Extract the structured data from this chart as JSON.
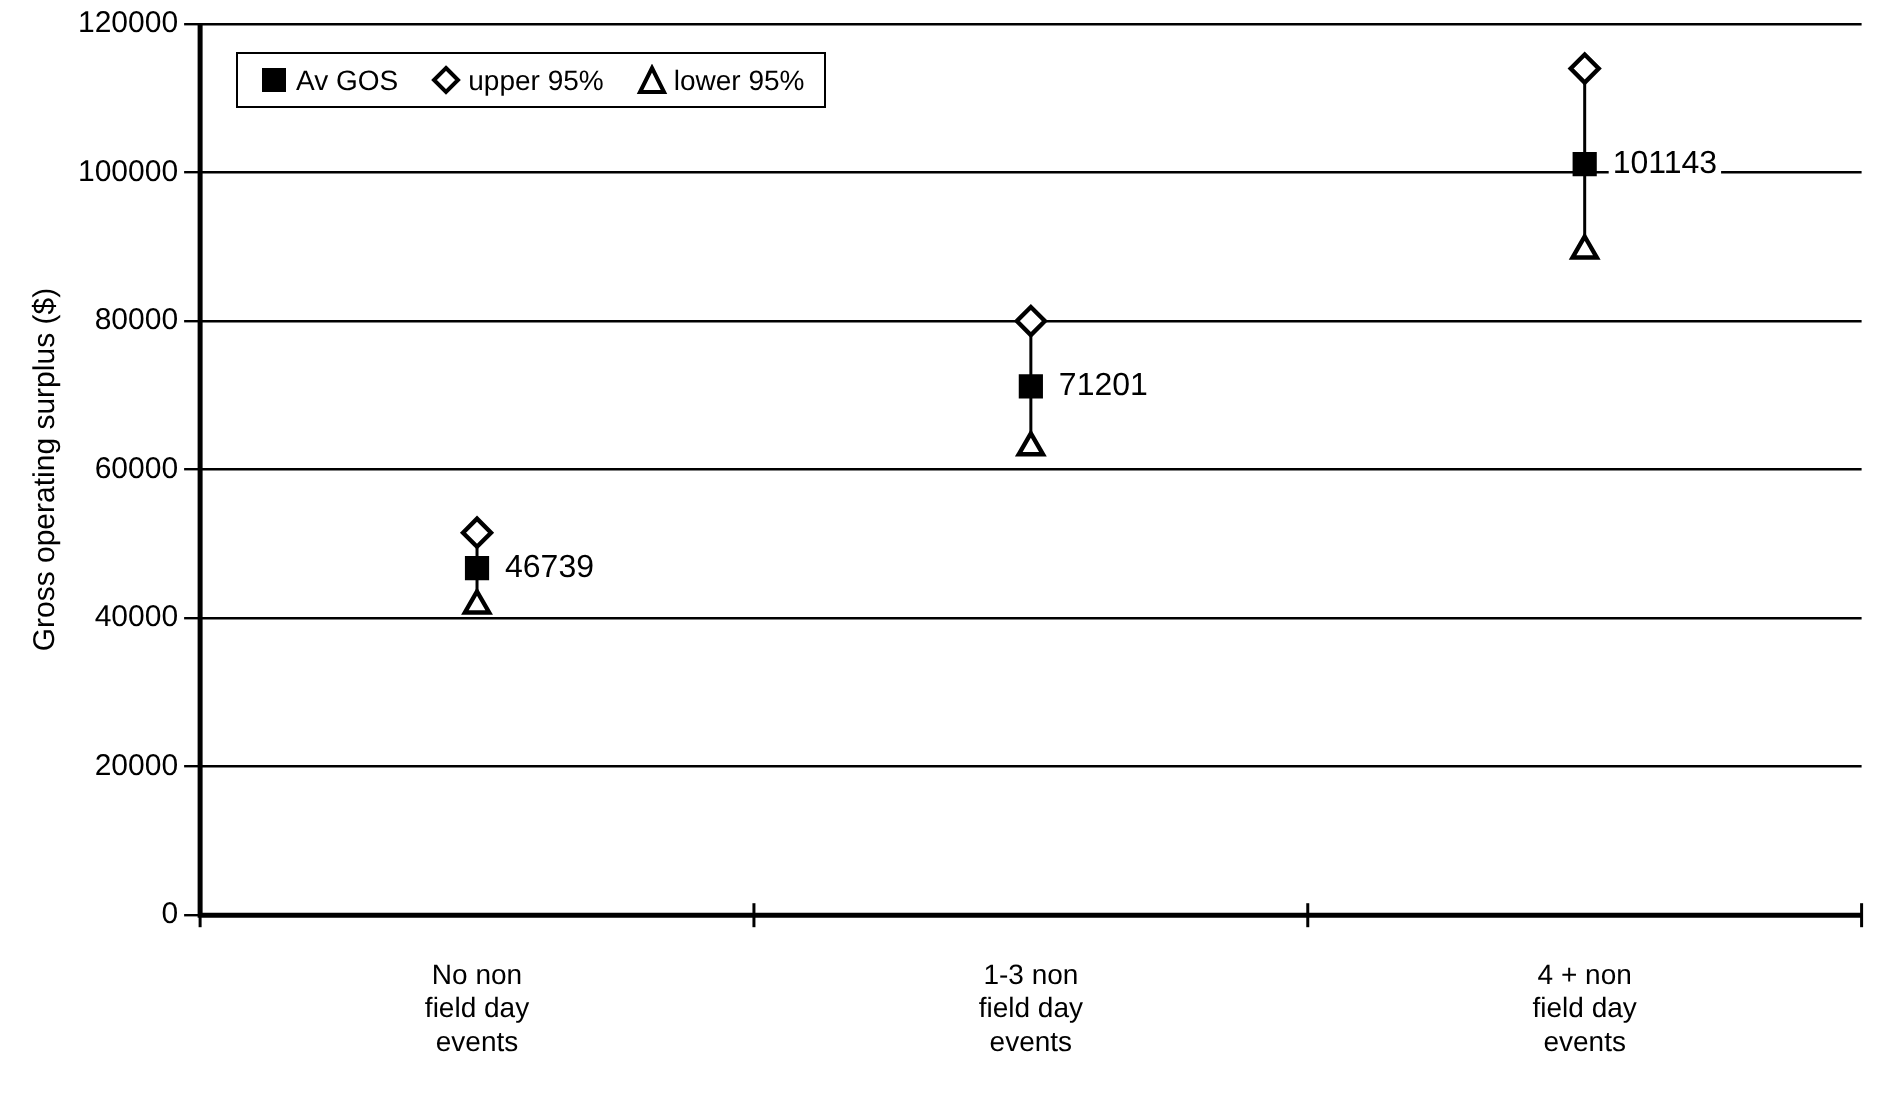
{
  "chart_data": {
    "type": "scatter",
    "ylabel": "Gross operating surplus ($)",
    "categories": [
      "No non field day events",
      "1-3 non field day events",
      "4 + non field day events"
    ],
    "series": [
      {
        "name": "Av GOS",
        "color": "#000000",
        "marker": "square",
        "values": [
          46739,
          71201,
          101143
        ],
        "value_labels": [
          "46739",
          "71201",
          "101143"
        ]
      },
      {
        "name": "upper 95%",
        "color": "#000000",
        "marker": "diamond",
        "values": [
          51500,
          80000,
          114000
        ]
      },
      {
        "name": "lower 95%",
        "color": "#000000",
        "marker": "triangle",
        "values": [
          41700,
          63000,
          89500
        ]
      }
    ],
    "ylim": [
      0,
      120000
    ],
    "yticks": [
      0,
      20000,
      40000,
      60000,
      80000,
      100000,
      120000
    ],
    "grid": "y",
    "legend": "top left"
  }
}
